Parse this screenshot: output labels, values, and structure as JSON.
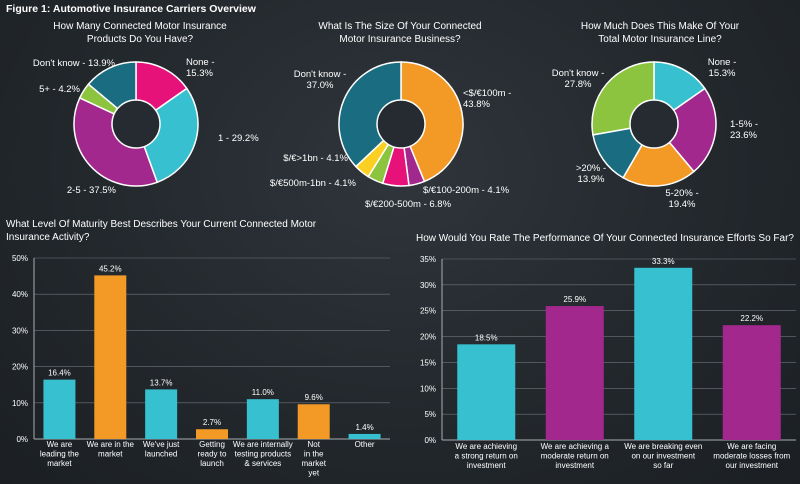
{
  "figure_title": "Figure 1: Automotive Insurance Carriers Overview",
  "colors": {
    "teal": "#37c0cf",
    "orange": "#f39a26",
    "purple": "#a3288d",
    "magenta": "#e7117a",
    "green": "#8cc43f",
    "yellow": "#fcd022",
    "dark_teal": "#1a6d81",
    "hole": "#262b31",
    "grid": "#6d747a",
    "axis": "#a7adb2"
  },
  "chart_data": [
    {
      "type": "pie",
      "title_lines": [
        "How Many Connected Motor Insurance",
        "Products Do You Have?"
      ],
      "slices": [
        {
          "label_lines": [
            "None -",
            "15.3%"
          ],
          "value": 15.3,
          "color": "#e7117a"
        },
        {
          "label_lines": [
            "1 - 29.2%"
          ],
          "value": 29.2,
          "color": "#37c0cf"
        },
        {
          "label_lines": [
            "2-5 - 37.5%"
          ],
          "value": 37.5,
          "color": "#a3288d"
        },
        {
          "label_lines": [
            "5+ - 4.2%"
          ],
          "value": 4.2,
          "color": "#8cc43f"
        },
        {
          "label_lines": [
            "Don't know - 13.9%"
          ],
          "value": 13.9,
          "color": "#1a6d81"
        }
      ]
    },
    {
      "type": "pie",
      "title_lines": [
        "What Is The Size Of Your Connected",
        "Motor Insurance Business?"
      ],
      "slices": [
        {
          "label_lines": [
            "<$/€100m -",
            "43.8%"
          ],
          "value": 43.8,
          "color": "#f39a26"
        },
        {
          "label_lines": [
            "$/€100-200m - 4.1%"
          ],
          "value": 4.1,
          "color": "#a3288d"
        },
        {
          "label_lines": [
            "$/€200-500m - 6.8%"
          ],
          "value": 6.8,
          "color": "#e7117a"
        },
        {
          "label_lines": [
            "$/€500m-1bn - 4.1%"
          ],
          "value": 4.1,
          "color": "#8cc43f"
        },
        {
          "label_lines": [
            "$/€>1bn - 4.1%"
          ],
          "value": 4.1,
          "color": "#fcd022"
        },
        {
          "label_lines": [
            "Don't know -",
            "37.0%"
          ],
          "value": 37.0,
          "color": "#1a6d81"
        }
      ]
    },
    {
      "type": "pie",
      "title_lines": [
        "How Much Does This Make Of Your",
        "Total Motor Insurance Line?"
      ],
      "slices": [
        {
          "label_lines": [
            "None -",
            "15.3%"
          ],
          "value": 15.3,
          "color": "#37c0cf"
        },
        {
          "label_lines": [
            "1-5% -",
            "23.6%"
          ],
          "value": 23.6,
          "color": "#a3288d"
        },
        {
          "label_lines": [
            "5-20% -",
            "19.4%"
          ],
          "value": 19.4,
          "color": "#f39a26"
        },
        {
          "label_lines": [
            ">20% -",
            "13.9%"
          ],
          "value": 13.9,
          "color": "#1a6d81"
        },
        {
          "label_lines": [
            "Don't know -",
            "27.8%"
          ],
          "value": 27.8,
          "color": "#8cc43f"
        }
      ]
    },
    {
      "type": "bar",
      "title_lines": [
        "What Level Of Maturity Best Describes Your Current Connected Motor",
        "Insurance Activity?"
      ],
      "ylim": [
        0,
        50
      ],
      "yticks": [
        0,
        10,
        20,
        30,
        40,
        50
      ],
      "ytick_labels": [
        "0%",
        "10%",
        "20%",
        "30%",
        "40%",
        "50%"
      ],
      "grid": true,
      "bars": [
        {
          "label_lines": [
            "We are",
            "leading the",
            "market"
          ],
          "value": 16.4,
          "value_label": "16.4%",
          "color": "#37c0cf"
        },
        {
          "label_lines": [
            "We are in the",
            "market"
          ],
          "value": 45.2,
          "value_label": "45.2%",
          "color": "#f39a26"
        },
        {
          "label_lines": [
            "We've just",
            "launched"
          ],
          "value": 13.7,
          "value_label": "13.7%",
          "color": "#37c0cf"
        },
        {
          "label_lines": [
            "Getting",
            "ready to",
            "launch"
          ],
          "value": 2.7,
          "value_label": "2.7%",
          "color": "#f39a26"
        },
        {
          "label_lines": [
            "We are internally",
            "testing products",
            "& services"
          ],
          "value": 11.0,
          "value_label": "11.0%",
          "color": "#37c0cf"
        },
        {
          "label_lines": [
            "Not",
            "in the",
            "market",
            "yet"
          ],
          "value": 9.6,
          "value_label": "9.6%",
          "color": "#f39a26"
        },
        {
          "label_lines": [
            "Other"
          ],
          "value": 1.4,
          "value_label": "1.4%",
          "color": "#37c0cf"
        }
      ]
    },
    {
      "type": "bar",
      "title_lines": [
        "How Would You Rate The Performance Of Your Connected Insurance Efforts So Far?"
      ],
      "ylim": [
        0,
        35
      ],
      "yticks": [
        0,
        5,
        10,
        15,
        20,
        25,
        30,
        35
      ],
      "ytick_labels": [
        "0%",
        "5%",
        "10%",
        "15%",
        "20%",
        "25%",
        "30%",
        "35%"
      ],
      "grid": true,
      "bars": [
        {
          "label_lines": [
            "We are achieving",
            "a strong return on",
            "investment"
          ],
          "value": 18.5,
          "value_label": "18.5%",
          "color": "#37c0cf"
        },
        {
          "label_lines": [
            "We are achieving a",
            "moderate return on",
            "investment"
          ],
          "value": 25.9,
          "value_label": "25.9%",
          "color": "#a3288d"
        },
        {
          "label_lines": [
            "We are breaking even",
            "on our investment",
            "so far"
          ],
          "value": 33.3,
          "value_label": "33.3%",
          "color": "#37c0cf"
        },
        {
          "label_lines": [
            "We are facing",
            "moderate losses from",
            "our investment"
          ],
          "value": 22.2,
          "value_label": "22.2%",
          "color": "#a3288d"
        }
      ]
    }
  ]
}
